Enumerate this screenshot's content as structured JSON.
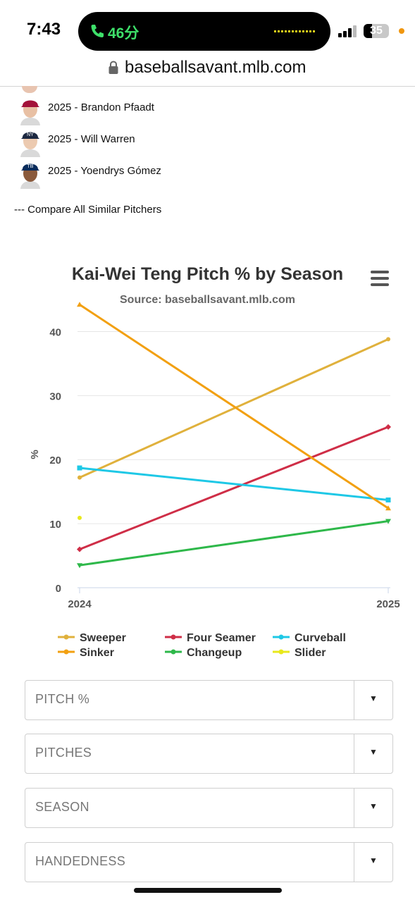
{
  "status_bar": {
    "time": "7:43",
    "call_duration": "46分",
    "battery": "35"
  },
  "browser": {
    "url": "baseballsavant.mlb.com"
  },
  "similar_pitchers": {
    "items": [
      {
        "label": "2025 - Brandon Pfaadt",
        "cap_color": "#a3123a"
      },
      {
        "label": "2025 - Will Warren",
        "cap_color": "#1c2841"
      },
      {
        "label": "2025 - Yoendrys Gómez",
        "cap_color": "#092c5c"
      }
    ],
    "compare_link": "--- Compare All Similar Pitchers"
  },
  "chart": {
    "title": "Kai-Wei Teng Pitch % by Season",
    "subtitle": "Source: baseballsavant.mlb.com"
  },
  "chart_data": {
    "type": "line",
    "title": "Kai-Wei Teng Pitch % by Season",
    "subtitle": "Source: baseballsavant.mlb.com",
    "ylabel": "%",
    "xlabel": "",
    "x": [
      "2024",
      "2025"
    ],
    "ylim": [
      0,
      45
    ],
    "yticks": [
      0,
      10,
      20,
      30,
      40
    ],
    "grid": true,
    "legend_position": "bottom",
    "series": [
      {
        "name": "Sweeper",
        "color": "#e0b13c",
        "values": [
          17.2,
          38.8
        ]
      },
      {
        "name": "Four Seamer",
        "color": "#cf2e47",
        "values": [
          6.0,
          25.1
        ]
      },
      {
        "name": "Curveball",
        "color": "#1ec8e6",
        "values": [
          18.7,
          13.7
        ]
      },
      {
        "name": "Sinker",
        "color": "#f2a011",
        "values": [
          44.2,
          12.4
        ]
      },
      {
        "name": "Changeup",
        "color": "#2eb84a",
        "values": [
          3.5,
          10.4
        ]
      },
      {
        "name": "Slider",
        "color": "#e8e81c",
        "values": [
          10.9,
          null
        ]
      }
    ]
  },
  "filters": [
    {
      "label": "PITCH %",
      "arrow": "▼"
    },
    {
      "label": "PITCHES",
      "arrow": "▼"
    },
    {
      "label": "SEASON",
      "arrow": "▼"
    },
    {
      "label": "HANDEDNESS",
      "arrow": "▼"
    }
  ]
}
